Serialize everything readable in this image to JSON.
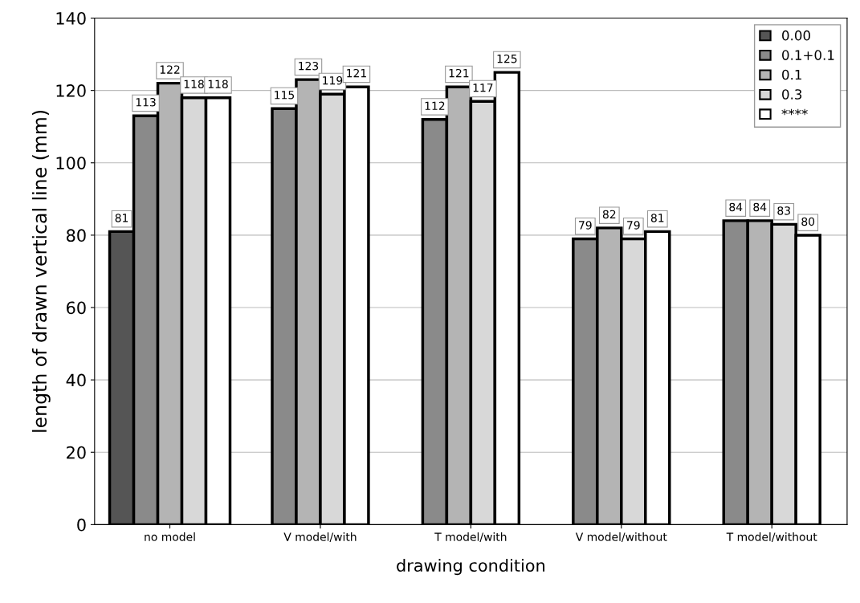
{
  "chart_data": {
    "type": "bar",
    "xlabel": "drawing condition",
    "ylabel": "length of drawn vertical line (mm)",
    "categories": [
      "no model",
      "V model/with",
      "T model/with",
      "V model/without",
      "T model/without"
    ],
    "series": [
      {
        "name": "0.00",
        "color": "#555555",
        "values": [
          81,
          null,
          null,
          null,
          null
        ]
      },
      {
        "name": "0.1+0.1",
        "color": "#8a8a8a",
        "values": [
          113,
          115,
          112,
          79,
          84
        ]
      },
      {
        "name": "0.1",
        "color": "#b4b4b4",
        "values": [
          122,
          123,
          121,
          82,
          84
        ]
      },
      {
        "name": "0.3",
        "color": "#d8d8d8",
        "values": [
          118,
          119,
          117,
          79,
          83
        ]
      },
      {
        "name": "****",
        "color": "#ffffff",
        "values": [
          118,
          121,
          125,
          81,
          80
        ]
      }
    ],
    "ylim": [
      0,
      140
    ],
    "yticks": [
      0,
      20,
      40,
      60,
      80,
      100,
      120,
      140
    ],
    "grid": "y",
    "legend": "top right",
    "data_labels": true
  }
}
